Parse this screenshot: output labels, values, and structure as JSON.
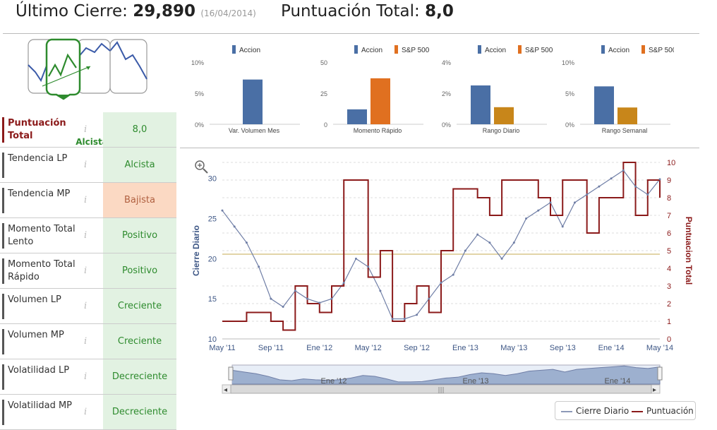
{
  "header": {
    "last_close_label": "Último Cierre:",
    "last_close_value": "29,890",
    "last_close_date": "(16/04/2014)",
    "score_label": "Puntuación Total:",
    "score_value": "8,0"
  },
  "trend": {
    "label": "Alcista",
    "selected": "up-trend"
  },
  "table": {
    "rows": [
      {
        "label": "Puntuación Total",
        "value": "8,0",
        "status": "good",
        "highlight": true
      },
      {
        "label": "Tendencia LP",
        "value": "Alcista",
        "status": "good"
      },
      {
        "label": "Tendencia MP",
        "value": "Bajista",
        "status": "bad"
      },
      {
        "label": "Momento Total Lento",
        "value": "Positivo",
        "status": "good"
      },
      {
        "label": "Momento Total Rápido",
        "value": "Positivo",
        "status": "good"
      },
      {
        "label": "Volumen LP",
        "value": "Creciente",
        "status": "good"
      },
      {
        "label": "Volumen MP",
        "value": "Creciente",
        "status": "good"
      },
      {
        "label": "Volatilidad LP",
        "value": "Decreciente",
        "status": "good"
      },
      {
        "label": "Volatilidad MP",
        "value": "Decreciente",
        "status": "good"
      }
    ],
    "info_glyph": "i"
  },
  "colors": {
    "accion": "#4a6fa5",
    "sp500": "#e07020",
    "sp500_small": "#c8861a",
    "cierre": "#6f7ea6",
    "puntuacion": "#8b1a1a",
    "good_bg": "#e2f2e2",
    "bad_bg": "#fbd9c3",
    "threshold": "#d8c58a"
  },
  "chart_data": [
    {
      "type": "bar",
      "categories": [
        "Var. Volumen Mes"
      ],
      "series": [
        {
          "name": "Accion",
          "values": [
            7.2
          ]
        }
      ],
      "yticks": [
        "10%",
        "5%",
        "0%"
      ],
      "ylim": [
        0,
        10
      ]
    },
    {
      "type": "bar",
      "categories": [
        "Momento Rápido"
      ],
      "series": [
        {
          "name": "Accion",
          "values": [
            12
          ]
        },
        {
          "name": "S&P 500",
          "values": [
            37
          ]
        }
      ],
      "yticks": [
        "50",
        "25",
        "0"
      ],
      "ylim": [
        0,
        50
      ]
    },
    {
      "type": "bar",
      "categories": [
        "Rango Diario"
      ],
      "series": [
        {
          "name": "Accion",
          "values": [
            2.5
          ]
        },
        {
          "name": "S&P 500",
          "values": [
            1.1
          ]
        }
      ],
      "yticks": [
        "4%",
        "2%",
        "0%"
      ],
      "ylim": [
        0,
        4
      ]
    },
    {
      "type": "bar",
      "categories": [
        "Rango Semanal"
      ],
      "series": [
        {
          "name": "Accion",
          "values": [
            6.1
          ]
        },
        {
          "name": "S&P 500",
          "values": [
            2.7
          ]
        }
      ],
      "yticks": [
        "10%",
        "5%",
        "0%"
      ],
      "ylim": [
        0,
        10
      ]
    },
    {
      "type": "line",
      "ylabel": "Cierre Diario",
      "y2label": "Puntuacion Total",
      "ylim": [
        10,
        32
      ],
      "y2lim": [
        0,
        10
      ],
      "yticks": [
        10,
        15,
        20,
        25,
        30
      ],
      "y2ticks": [
        0,
        1,
        2,
        3,
        4,
        5,
        6,
        7,
        8,
        9,
        10
      ],
      "xticks": [
        "May '11",
        "Sep '11",
        "Ene '12",
        "May '12",
        "Sep '12",
        "Ene '13",
        "May '13",
        "Sep '13",
        "Ene '14",
        "May '14"
      ],
      "navigator_labels": [
        "Ene '12",
        "Ene '13",
        "Ene '14"
      ],
      "threshold": 4.8,
      "series": [
        {
          "name": "Cierre Diario",
          "x": [
            0,
            1,
            2,
            3,
            4,
            5,
            6,
            7,
            8,
            9,
            10,
            11,
            12,
            13,
            14,
            15,
            16,
            17,
            18,
            19,
            20,
            21,
            22,
            23,
            24,
            25,
            26,
            27,
            28,
            29,
            30,
            31,
            32,
            33,
            34,
            35,
            36
          ],
          "values": [
            26,
            24,
            22,
            19,
            15,
            14,
            16,
            15,
            14.5,
            15,
            17,
            20,
            19,
            16,
            12.5,
            12.5,
            13,
            15,
            17,
            18,
            21,
            23,
            22,
            20,
            22,
            25,
            26,
            27,
            24,
            27,
            28,
            29,
            30,
            31,
            29,
            28,
            29.9
          ]
        },
        {
          "name": "Puntuación",
          "x": [
            0,
            1,
            2,
            3,
            4,
            5,
            6,
            7,
            8,
            9,
            10,
            11,
            12,
            13,
            14,
            15,
            16,
            17,
            18,
            19,
            20,
            21,
            22,
            23,
            24,
            25,
            26,
            27,
            28,
            29,
            30,
            31,
            32,
            33,
            34,
            35,
            36
          ],
          "values": [
            1,
            1,
            1.5,
            1.5,
            1,
            0.5,
            3,
            2,
            1.5,
            3,
            9,
            9,
            3.5,
            5,
            1,
            2,
            3,
            1.5,
            5,
            8.5,
            8.5,
            8,
            7,
            9,
            9,
            9,
            8,
            7,
            9,
            9,
            6,
            8,
            8,
            10,
            7,
            9,
            8
          ]
        }
      ]
    }
  ],
  "legend": {
    "cierre": "Cierre Diario",
    "puntuacion": "Puntuación"
  },
  "icons": {
    "zoom": "zoom-in-icon",
    "scroll_left": "chevron-left-icon",
    "scroll_right": "chevron-right-icon",
    "scroll_grip": "grip-icon"
  }
}
